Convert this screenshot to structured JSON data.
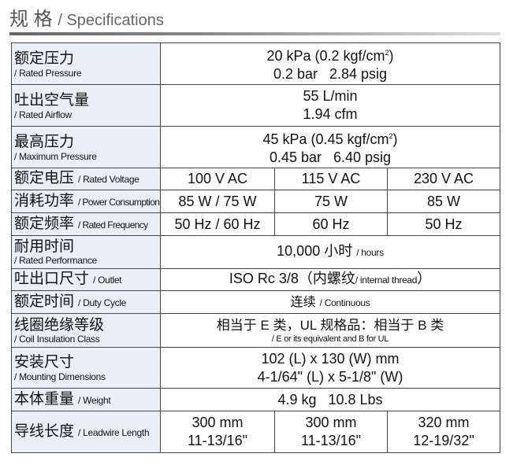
{
  "header": {
    "title_zh": "规 格",
    "title_en": "/ Specifications"
  },
  "rows": [
    {
      "zh": "额定压力",
      "en": "/ Rated Pressure",
      "line1": "20 kPa (0.2 kgf/cm",
      "line1_sup": "2",
      "line1_end": ")",
      "line2": "0.2 bar   2.84 psig"
    },
    {
      "zh": "吐出空气量",
      "en": "/ Rated Airflow",
      "line1": "55 L/min",
      "line2": "1.94 cfm"
    },
    {
      "zh": "最高压力",
      "en": "/ Maximum Pressure",
      "line1": "45 kPa (0.45 kgf/cm",
      "line1_sup": "2",
      "line1_end": ")",
      "line2": "0.45 bar   6.40 psig"
    },
    {
      "zh": "额定电压",
      "en": "/ Rated Voltage",
      "cols": [
        "100 V AC",
        "115 V AC",
        "230 V AC"
      ]
    },
    {
      "zh": "消耗功率",
      "en": "/ Power Consumption",
      "cols": [
        "85 W / 75 W",
        "75 W",
        "85 W"
      ]
    },
    {
      "zh": "额定频率",
      "en": "/ Rated Frequency",
      "cols": [
        "50 Hz / 60 Hz",
        "60 Hz",
        "50 Hz"
      ]
    },
    {
      "zh": "耐用时间",
      "en": "/ Rated Performance",
      "value": "10,000 小时",
      "value_en": "/ hours"
    },
    {
      "zh": "吐出口尺寸",
      "en": "/ Outlet",
      "value": "ISO Rc 3/8（内螺纹",
      "value_en": "/ internal thread",
      "value_end": "）"
    },
    {
      "zh": "额定时间",
      "en": "/ Duty Cycle",
      "value": "连续",
      "value_en": "/ Continuous"
    },
    {
      "zh": "线圈绝缘等级",
      "en": "/ Coil Insulation Class",
      "line1": "相当于 E 类，UL 规格品：相当于 B 类",
      "line2": "/ E or its equivalent and B for UL"
    },
    {
      "zh": "安装尺寸",
      "en": "/ Mounting Dimensions",
      "line1": "102 (L) x 130 (W) mm",
      "line2": "4-1/64\" (L) x 5-1/8\" (W)"
    },
    {
      "zh": "本体重量",
      "en": "/ Weight",
      "value": "4.9 kg   10.8 Lbs"
    },
    {
      "zh": "导线长度",
      "en": "/ Leadwire Length",
      "cols2": [
        [
          "300 mm",
          "11-13/16\""
        ],
        [
          "300 mm",
          "11-13/16\""
        ],
        [
          "320 mm",
          "12-19/32\""
        ]
      ]
    }
  ]
}
